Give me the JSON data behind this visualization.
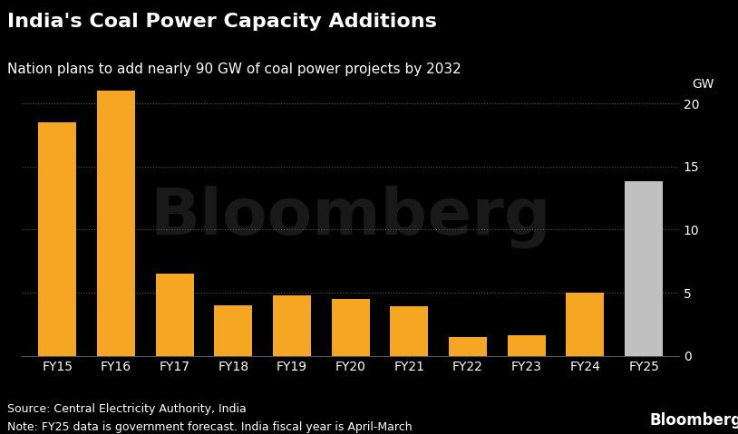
{
  "categories": [
    "FY15",
    "FY16",
    "FY17",
    "FY18",
    "FY19",
    "FY20",
    "FY21",
    "FY22",
    "FY23",
    "FY24",
    "FY25"
  ],
  "values": [
    18.5,
    21.0,
    6.5,
    4.0,
    4.8,
    4.5,
    3.9,
    1.5,
    1.6,
    5.0,
    13.8
  ],
  "bar_colors": [
    "#F5A623",
    "#F5A623",
    "#F5A623",
    "#F5A623",
    "#F5A623",
    "#F5A623",
    "#F5A623",
    "#F5A623",
    "#F5A623",
    "#F5A623",
    "#C0C0C0"
  ],
  "title": "India's Coal Power Capacity Additions",
  "subtitle": "Nation plans to add nearly 90 GW of coal power projects by 2032",
  "ylabel": "GW",
  "ylim": [
    0,
    22
  ],
  "yticks": [
    0,
    5,
    10,
    15,
    20
  ],
  "background_color": "#000000",
  "text_color": "#FFFFFF",
  "grid_color": "#444444",
  "source_text": "Source: Central Electricity Authority, India",
  "note_text": "Note: FY25 data is government forecast. India fiscal year is April-March",
  "bloomberg_text": "Bloomberg",
  "title_fontsize": 16,
  "subtitle_fontsize": 11,
  "tick_fontsize": 10,
  "note_fontsize": 9
}
